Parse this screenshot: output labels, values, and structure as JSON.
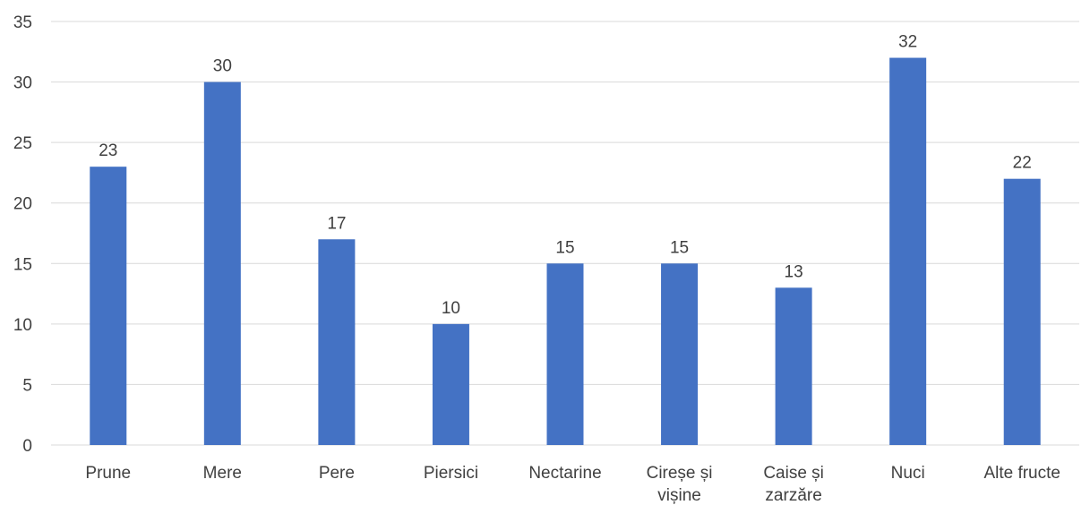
{
  "chart_data": {
    "type": "bar",
    "title": "",
    "xlabel": "",
    "ylabel": "",
    "categories": [
      "Prune",
      "Mere",
      "Pere",
      "Piersici",
      "Nectarine",
      "Cireșe și vișine",
      "Caise și zarzăre",
      "Nuci",
      "Alte fructe"
    ],
    "category_lines": [
      [
        "Prune"
      ],
      [
        "Mere"
      ],
      [
        "Pere"
      ],
      [
        "Piersici"
      ],
      [
        "Nectarine"
      ],
      [
        "Cireșe și",
        "vișine"
      ],
      [
        "Caise și",
        "zarzăre"
      ],
      [
        "Nuci"
      ],
      [
        "Alte fructe"
      ]
    ],
    "values": [
      23,
      30,
      17,
      10,
      15,
      15,
      13,
      32,
      22
    ],
    "data_labels": [
      "23",
      "30",
      "17",
      "10",
      "15",
      "15",
      "13",
      "32",
      "22"
    ],
    "ylim": [
      0,
      35
    ],
    "yticks": [
      0,
      5,
      10,
      15,
      20,
      25,
      30,
      35
    ],
    "grid": true,
    "legend": "none",
    "colors": {
      "bar": "#4472C4",
      "grid": "#D9D9D9",
      "text": "#404040"
    }
  }
}
